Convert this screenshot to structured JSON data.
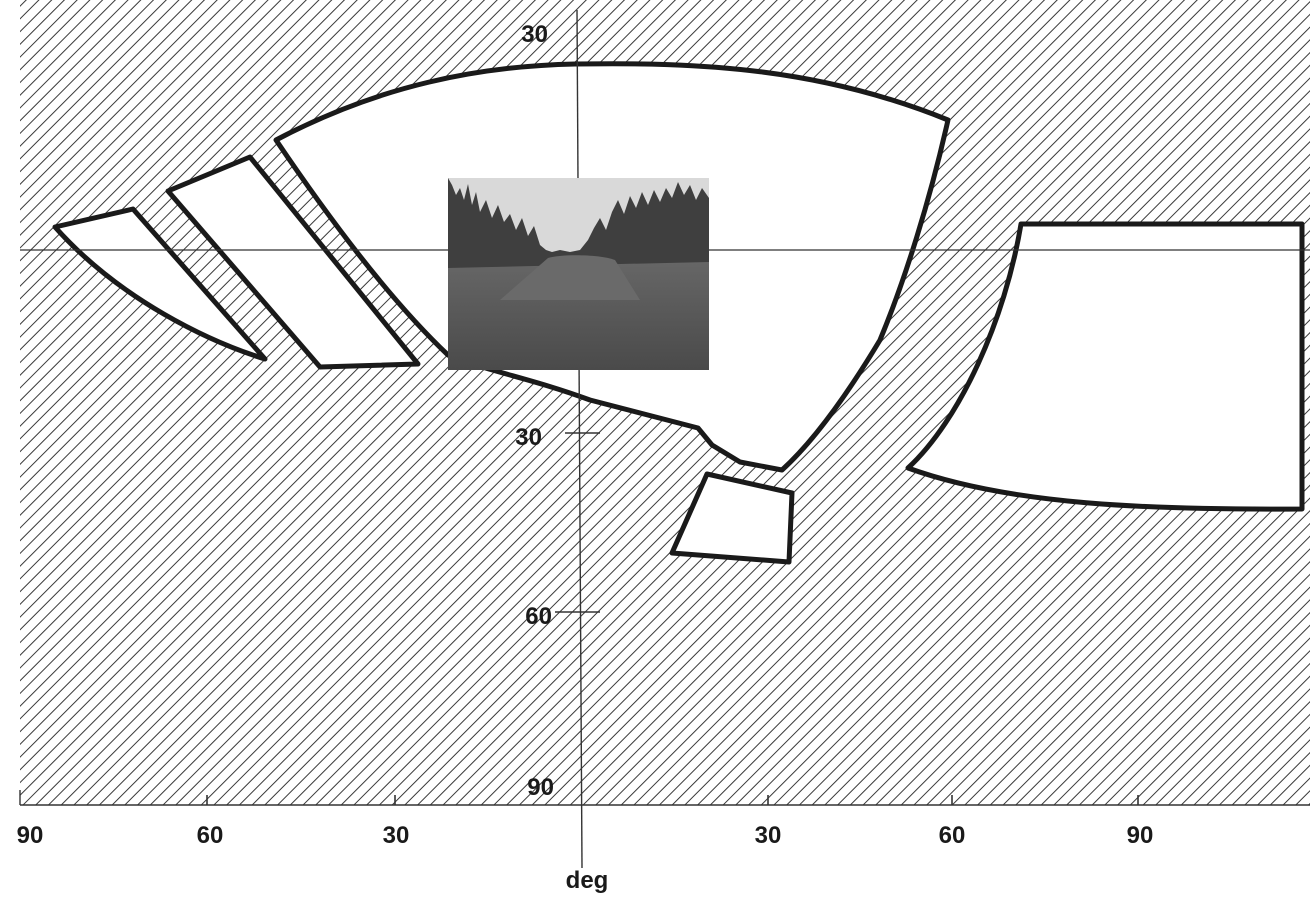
{
  "figure": {
    "x_axis": {
      "ticks": [
        "90",
        "60",
        "30",
        "30",
        "60",
        "90"
      ],
      "unit": "deg"
    },
    "y_axis": {
      "ticks": [
        "30",
        "30",
        "60",
        "90"
      ]
    },
    "colors": {
      "hatch_line": "#3a3a3a",
      "hatch_background": "#ffffff",
      "outline": "#1a1a1a",
      "axis": "#333333",
      "scene_sky": "#d9d9d9",
      "scene_trees": "#3f3f3f",
      "scene_ground": "#555555"
    },
    "scene_image": {
      "content": "forest road scene"
    }
  }
}
